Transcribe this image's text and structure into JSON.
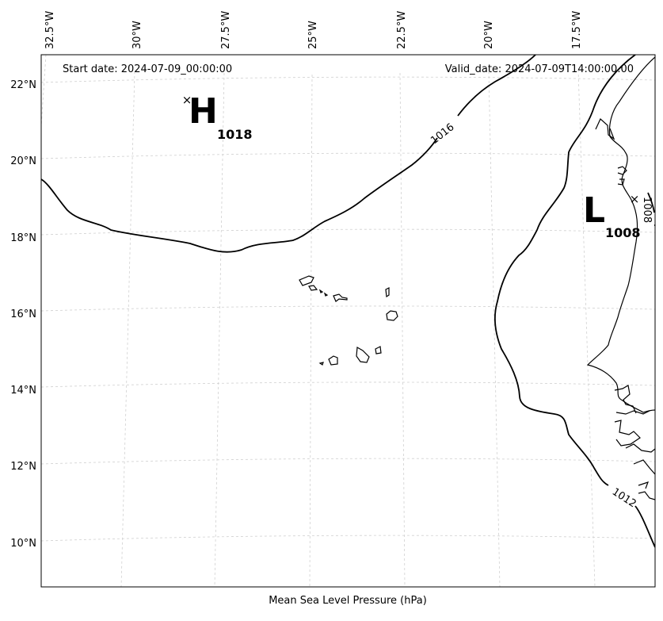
{
  "map": {
    "lon_labels": [
      "32.5°W",
      "30°W",
      "27.5°W",
      "25°W",
      "22.5°W",
      "20°W",
      "17.5°W"
    ],
    "lat_labels": [
      "22°N",
      "20°N",
      "18°N",
      "16°N",
      "14°N",
      "12°N",
      "10°N"
    ],
    "start_date": "Start date: 2024-07-09_00:00:00",
    "valid_date": "Valid_date: 2024-07-09T14:00:00.00",
    "high": {
      "letter": "H",
      "value": "1018",
      "marker": "×"
    },
    "low": {
      "letter": "L",
      "value": "1008",
      "marker": "×"
    },
    "contours": [
      "1016",
      "1012",
      "1008"
    ],
    "caption": "Mean Sea Level Pressure (hPa)",
    "colors": {
      "contour": "#000000",
      "coast": "#000000",
      "grid": "#cccccc",
      "background": "#ffffff"
    }
  }
}
